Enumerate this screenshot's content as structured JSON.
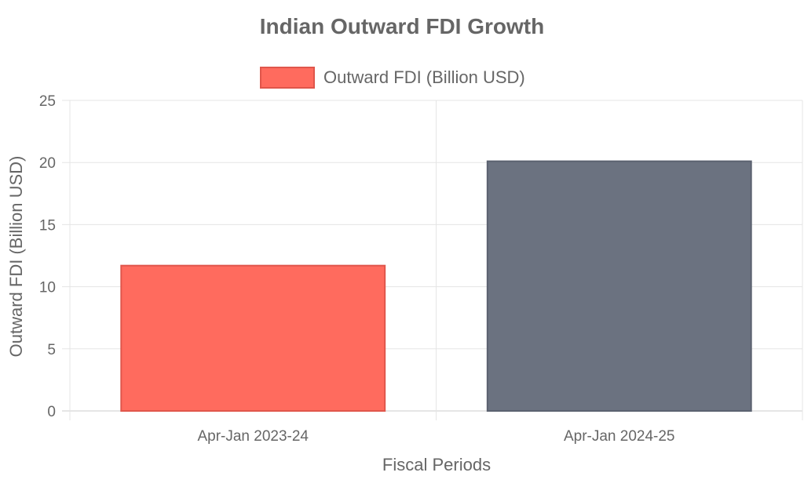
{
  "chart_data": {
    "type": "bar",
    "title": "Indian Outward FDI Growth",
    "xlabel": "Fiscal Periods",
    "ylabel": "Outward FDI (Billion USD)",
    "categories": [
      "Apr-Jan 2023-24",
      "Apr-Jan 2024-25"
    ],
    "series": [
      {
        "name": "Outward FDI (Billion USD)",
        "values": [
          11.7,
          20.1
        ]
      }
    ],
    "bar_colors": [
      "#ff6b5e",
      "#6b7280"
    ],
    "bar_border_colors": [
      "#e0564b",
      "#5b6270"
    ],
    "ylim": [
      0,
      25
    ],
    "yticks": [
      0,
      5,
      10,
      15,
      20,
      25
    ],
    "grid": true,
    "legend": "top-center"
  },
  "colors": {
    "title": "#666666",
    "text": "#666666",
    "grid": "#e5e5e5",
    "axis": "#cccccc",
    "legend_swatch": "#ff6b5e",
    "legend_swatch_border": "#e0564b"
  }
}
